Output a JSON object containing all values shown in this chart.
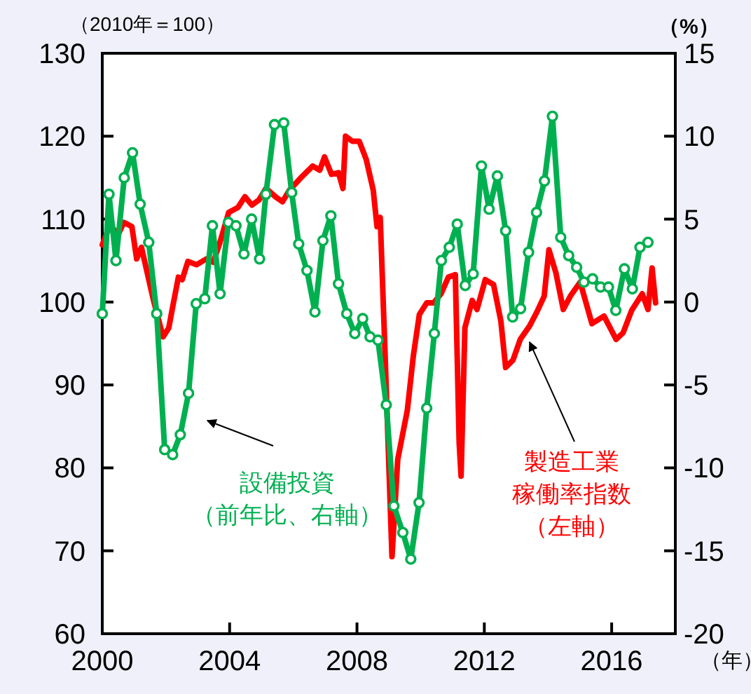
{
  "chart_data": {
    "type": "line",
    "ylabel": "（2010年＝100）",
    "y2label": "（%）",
    "xlabel": "（年）",
    "xlim": [
      2000,
      2018
    ],
    "xticks": [
      2000,
      2004,
      2008,
      2012,
      2016
    ],
    "ylim": [
      60,
      130
    ],
    "yticks": [
      60,
      70,
      80,
      90,
      100,
      110,
      120,
      130
    ],
    "y2lim": [
      -20,
      15
    ],
    "y2ticks": [
      -20,
      -15,
      -10,
      -5,
      0,
      5,
      10,
      15
    ],
    "grid": false,
    "line_style": "solid",
    "series": [
      {
        "color": "#ff0000",
        "marker": "none",
        "x": [
          2000.0,
          2000.25,
          2000.48,
          2000.68,
          2000.93,
          2001.08,
          2001.23,
          2001.61,
          2001.91,
          2002.09,
          2002.21,
          2002.39,
          2002.51,
          2002.69,
          2002.96,
          2003.27,
          2003.49,
          2003.68,
          2003.97,
          2004.26,
          2004.48,
          2004.7,
          2004.92,
          2005.14,
          2005.44,
          2005.66,
          2005.88,
          2006.24,
          2006.61,
          2006.83,
          2006.98,
          2007.2,
          2007.42,
          2007.56,
          2007.64,
          2007.85,
          2008.07,
          2008.29,
          2008.51,
          2008.63,
          2008.73,
          2008.88,
          2009.1,
          2009.28,
          2009.58,
          2009.77,
          2009.96,
          2010.19,
          2010.41,
          2010.64,
          2010.87,
          2011.09,
          2011.21,
          2011.27,
          2011.39,
          2011.62,
          2011.77,
          2012.03,
          2012.29,
          2012.52,
          2012.67,
          2012.9,
          2013.13,
          2013.42,
          2013.65,
          2013.88,
          2014.03,
          2014.25,
          2014.48,
          2014.7,
          2015.01,
          2015.38,
          2015.76,
          2016.14,
          2016.36,
          2016.63,
          2016.96,
          2017.14,
          2017.27,
          2017.38
        ],
        "values": [
          106.9,
          109.4,
          108.0,
          109.6,
          109.1,
          105.2,
          106.6,
          100.2,
          95.8,
          96.9,
          99.4,
          103.0,
          102.7,
          104.9,
          104.5,
          105.2,
          104.8,
          107.0,
          110.8,
          111.4,
          112.7,
          111.7,
          112.3,
          113.7,
          112.7,
          112.1,
          113.5,
          115.0,
          116.4,
          115.9,
          117.5,
          115.4,
          115.6,
          113.7,
          120.0,
          119.4,
          119.4,
          117.2,
          113.5,
          109.1,
          110.2,
          94.0,
          69.3,
          81.0,
          86.9,
          93.5,
          98.5,
          99.9,
          99.9,
          101.0,
          103.0,
          103.3,
          83.0,
          79.0,
          96.9,
          100.2,
          99.1,
          102.7,
          102.1,
          97.7,
          92.1,
          93.0,
          95.5,
          97.1,
          98.8,
          100.7,
          106.3,
          103.5,
          99.1,
          100.7,
          102.4,
          97.4,
          98.3,
          95.5,
          96.3,
          99.0,
          101.0,
          99.1,
          104.1,
          99.9
        ]
      },
      {
        "color": "#00b050",
        "marker": "circle",
        "axis": "y2",
        "x": [
          2000.0,
          2000.21,
          2000.43,
          2000.69,
          2000.95,
          2001.19,
          2001.46,
          2001.71,
          2001.96,
          2002.21,
          2002.45,
          2002.71,
          2002.95,
          2003.22,
          2003.46,
          2003.7,
          2003.96,
          2004.2,
          2004.45,
          2004.69,
          2004.94,
          2005.14,
          2005.41,
          2005.7,
          2005.95,
          2006.17,
          2006.43,
          2006.68,
          2006.93,
          2007.18,
          2007.42,
          2007.68,
          2007.93,
          2008.18,
          2008.41,
          2008.66,
          2008.92,
          2009.16,
          2009.44,
          2009.69,
          2009.95,
          2010.19,
          2010.43,
          2010.65,
          2010.9,
          2011.15,
          2011.4,
          2011.65,
          2011.91,
          2012.15,
          2012.41,
          2012.67,
          2012.89,
          2013.14,
          2013.39,
          2013.64,
          2013.89,
          2014.14,
          2014.4,
          2014.65,
          2014.9,
          2015.13,
          2015.4,
          2015.65,
          2015.9,
          2016.13,
          2016.4,
          2016.65,
          2016.89,
          2017.14
        ],
        "values": [
          -0.7,
          6.5,
          2.5,
          7.5,
          9.0,
          5.9,
          3.6,
          -0.7,
          -8.9,
          -9.2,
          -8.0,
          -5.5,
          -0.1,
          0.2,
          4.6,
          0.5,
          4.8,
          4.6,
          2.9,
          5.0,
          2.6,
          6.5,
          10.7,
          10.8,
          6.6,
          3.5,
          1.9,
          -0.6,
          3.7,
          5.2,
          1.1,
          -0.7,
          -1.9,
          -1.0,
          -2.1,
          -2.3,
          -6.2,
          -12.3,
          -13.9,
          -15.5,
          -12.1,
          -6.4,
          -1.9,
          2.5,
          3.3,
          4.7,
          1.0,
          1.7,
          8.2,
          5.6,
          7.6,
          4.3,
          -0.9,
          -0.4,
          3.0,
          5.4,
          7.3,
          11.2,
          3.9,
          2.8,
          2.1,
          1.2,
          1.4,
          0.9,
          0.9,
          -0.5,
          2.0,
          0.8,
          3.3,
          3.6
        ]
      }
    ],
    "annotations": [
      "設備投資",
      "（前年比、右軸）",
      "製造工業",
      "稼働率指数",
      "（左軸）"
    ]
  }
}
